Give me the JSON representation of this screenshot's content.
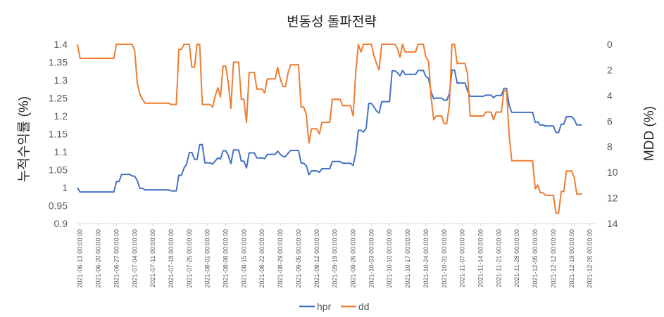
{
  "chart_data": {
    "type": "line",
    "title": "변동성 돌파전략",
    "ylabel": "누적수익률 (%)",
    "y2label": "MDD (%)",
    "ylim": [
      0.9,
      1.4
    ],
    "yticks": [
      "0.9",
      "0.95",
      "1",
      "1.05",
      "1.1",
      "1.15",
      "1.2",
      "1.25",
      "1.3",
      "1.35",
      "1.4"
    ],
    "y2lim": [
      0,
      14
    ],
    "y2reversed": true,
    "y2ticks": [
      "0",
      "2",
      "4",
      "6",
      "8",
      "10",
      "12",
      "14"
    ],
    "grid": false,
    "legend": "bottom",
    "x_start": "2021-06-12",
    "x_end": "2021-12-28",
    "xticks": [
      "2021-06-13 00:00:00",
      "2021-06-20 00:00:00",
      "2021-06-27 00:00:00",
      "2021-07-04 00:00:00",
      "2021-07-11 00:00:00",
      "2021-07-18 00:00:00",
      "2021-07-25 00:00:00",
      "2021-08-01 00:00:00",
      "2021-08-08 00:00:00",
      "2021-08-15 00:00:00",
      "2021-08-22 00:00:00",
      "2021-08-29 00:00:00",
      "2021-09-05 00:00:00",
      "2021-09-12 00:00:00",
      "2021-09-19 00:00:00",
      "2021-09-26 00:00:00",
      "2021-10-03 00:00:00",
      "2021-10-10 00:00:00",
      "2021-10-17 00:00:00",
      "2021-10-24 00:00:00",
      "2021-10-31 00:00:00",
      "2021-11-07 00:00:00",
      "2021-11-14 00:00:00",
      "2021-11-21 00:00:00",
      "2021-11-28 00:00:00",
      "2021-12-05 00:00:00",
      "2021-12-12 00:00:00",
      "2021-12-19 00:00:00",
      "2021-12-26 00:00:00"
    ],
    "colors": {
      "hpr": "#4472C4",
      "dd": "#ED7D31",
      "axis": "#d9d9d9",
      "text": "#595959",
      "title": "#262626"
    },
    "series": [
      {
        "name": "hpr",
        "axis": "left",
        "points": [
          [
            "2021-06-12",
            1.0
          ],
          [
            "2021-06-13",
            0.988
          ],
          [
            "2021-06-26",
            0.988
          ],
          [
            "2021-06-27",
            1.017
          ],
          [
            "2021-06-28",
            1.017
          ],
          [
            "2021-06-29",
            1.037
          ],
          [
            "2021-07-02",
            1.037
          ],
          [
            "2021-07-03",
            1.033
          ],
          [
            "2021-07-04",
            1.032
          ],
          [
            "2021-07-05",
            1.02
          ],
          [
            "2021-07-06",
            0.998
          ],
          [
            "2021-07-07",
            0.998
          ],
          [
            "2021-07-08",
            0.994
          ],
          [
            "2021-07-17",
            0.994
          ],
          [
            "2021-07-18",
            0.991
          ],
          [
            "2021-07-20",
            0.991
          ],
          [
            "2021-07-21",
            1.035
          ],
          [
            "2021-07-22",
            1.035
          ],
          [
            "2021-07-23",
            1.055
          ],
          [
            "2021-07-24",
            1.066
          ],
          [
            "2021-07-25",
            1.098
          ],
          [
            "2021-07-26",
            1.098
          ],
          [
            "2021-07-27",
            1.079
          ],
          [
            "2021-07-28",
            1.079
          ],
          [
            "2021-07-29",
            1.12
          ],
          [
            "2021-07-30",
            1.12
          ],
          [
            "2021-07-31",
            1.069
          ],
          [
            "2021-08-02",
            1.069
          ],
          [
            "2021-08-03",
            1.066
          ],
          [
            "2021-08-04",
            1.075
          ],
          [
            "2021-08-05",
            1.083
          ],
          [
            "2021-08-06",
            1.08
          ],
          [
            "2021-08-07",
            1.103
          ],
          [
            "2021-08-08",
            1.103
          ],
          [
            "2021-08-09",
            1.09
          ],
          [
            "2021-08-10",
            1.067
          ],
          [
            "2021-08-11",
            1.105
          ],
          [
            "2021-08-13",
            1.105
          ],
          [
            "2021-08-14",
            1.074
          ],
          [
            "2021-08-15",
            1.074
          ],
          [
            "2021-08-16",
            1.055
          ],
          [
            "2021-08-17",
            1.097
          ],
          [
            "2021-08-19",
            1.097
          ],
          [
            "2021-08-20",
            1.083
          ],
          [
            "2021-08-22",
            1.083
          ],
          [
            "2021-08-23",
            1.081
          ],
          [
            "2021-08-24",
            1.093
          ],
          [
            "2021-08-27",
            1.093
          ],
          [
            "2021-08-28",
            1.102
          ],
          [
            "2021-08-29",
            1.093
          ],
          [
            "2021-08-30",
            1.087
          ],
          [
            "2021-08-31",
            1.087
          ],
          [
            "2021-09-01",
            1.096
          ],
          [
            "2021-09-02",
            1.104
          ],
          [
            "2021-09-05",
            1.104
          ],
          [
            "2021-09-06",
            1.069
          ],
          [
            "2021-09-07",
            1.068
          ],
          [
            "2021-09-08",
            1.062
          ],
          [
            "2021-09-09",
            1.036
          ],
          [
            "2021-09-10",
            1.047
          ],
          [
            "2021-09-12",
            1.047
          ],
          [
            "2021-09-13",
            1.043
          ],
          [
            "2021-09-14",
            1.053
          ],
          [
            "2021-09-17",
            1.053
          ],
          [
            "2021-09-18",
            1.073
          ],
          [
            "2021-09-21",
            1.073
          ],
          [
            "2021-09-22",
            1.068
          ],
          [
            "2021-09-25",
            1.068
          ],
          [
            "2021-09-26",
            1.062
          ],
          [
            "2021-09-27",
            1.095
          ],
          [
            "2021-09-28",
            1.16
          ],
          [
            "2021-09-29",
            1.16
          ],
          [
            "2021-09-30",
            1.155
          ],
          [
            "2021-10-01",
            1.166
          ],
          [
            "2021-10-02",
            1.235
          ],
          [
            "2021-10-03",
            1.235
          ],
          [
            "2021-10-04",
            1.225
          ],
          [
            "2021-10-05",
            1.214
          ],
          [
            "2021-10-06",
            1.208
          ],
          [
            "2021-10-07",
            1.24
          ],
          [
            "2021-10-10",
            1.24
          ],
          [
            "2021-10-11",
            1.326
          ],
          [
            "2021-10-12",
            1.326
          ],
          [
            "2021-10-13",
            1.321
          ],
          [
            "2021-10-14",
            1.312
          ],
          [
            "2021-10-15",
            1.327
          ],
          [
            "2021-10-16",
            1.316
          ],
          [
            "2021-10-20",
            1.316
          ],
          [
            "2021-10-21",
            1.327
          ],
          [
            "2021-10-23",
            1.327
          ],
          [
            "2021-10-24",
            1.31
          ],
          [
            "2021-10-25",
            1.305
          ],
          [
            "2021-10-26",
            1.267
          ],
          [
            "2021-10-27",
            1.248
          ],
          [
            "2021-10-28",
            1.25
          ],
          [
            "2021-10-30",
            1.25
          ],
          [
            "2021-10-31",
            1.244
          ],
          [
            "2021-11-01",
            1.244
          ],
          [
            "2021-11-02",
            1.262
          ],
          [
            "2021-11-03",
            1.328
          ],
          [
            "2021-11-04",
            1.328
          ],
          [
            "2021-11-05",
            1.292
          ],
          [
            "2021-11-08",
            1.292
          ],
          [
            "2021-11-09",
            1.27
          ],
          [
            "2021-11-10",
            1.255
          ],
          [
            "2021-11-15",
            1.255
          ],
          [
            "2021-11-16",
            1.258
          ],
          [
            "2021-11-18",
            1.258
          ],
          [
            "2021-11-19",
            1.251
          ],
          [
            "2021-11-20",
            1.257
          ],
          [
            "2021-11-22",
            1.257
          ],
          [
            "2021-11-23",
            1.277
          ],
          [
            "2021-11-24",
            1.277
          ],
          [
            "2021-11-25",
            1.23
          ],
          [
            "2021-11-26",
            1.21
          ],
          [
            "2021-12-04",
            1.21
          ],
          [
            "2021-12-05",
            1.182
          ],
          [
            "2021-12-06",
            1.184
          ],
          [
            "2021-12-07",
            1.174
          ],
          [
            "2021-12-08",
            1.175
          ],
          [
            "2021-12-09",
            1.172
          ],
          [
            "2021-12-12",
            1.172
          ],
          [
            "2021-12-13",
            1.154
          ],
          [
            "2021-12-14",
            1.154
          ],
          [
            "2021-12-15",
            1.177
          ],
          [
            "2021-12-16",
            1.177
          ],
          [
            "2021-12-17",
            1.198
          ],
          [
            "2021-12-19",
            1.198
          ],
          [
            "2021-12-20",
            1.19
          ],
          [
            "2021-12-21",
            1.175
          ],
          [
            "2021-12-23",
            1.175
          ]
        ]
      },
      {
        "name": "dd",
        "axis": "right",
        "points": [
          [
            "2021-06-12",
            0.0
          ],
          [
            "2021-06-13",
            1.1
          ],
          [
            "2021-06-26",
            1.1
          ],
          [
            "2021-06-27",
            0.0
          ],
          [
            "2021-07-03",
            0.0
          ],
          [
            "2021-07-04",
            0.5
          ],
          [
            "2021-07-05",
            3.0
          ],
          [
            "2021-07-06",
            3.9
          ],
          [
            "2021-07-07",
            4.3
          ],
          [
            "2021-07-08",
            4.6
          ],
          [
            "2021-07-17",
            4.6
          ],
          [
            "2021-07-18",
            4.7
          ],
          [
            "2021-07-20",
            4.7
          ],
          [
            "2021-07-21",
            0.4
          ],
          [
            "2021-07-22",
            0.4
          ],
          [
            "2021-07-23",
            0.0
          ],
          [
            "2021-07-25",
            0.0
          ],
          [
            "2021-07-26",
            1.8
          ],
          [
            "2021-07-27",
            1.8
          ],
          [
            "2021-07-28",
            0.0
          ],
          [
            "2021-07-29",
            0.0
          ],
          [
            "2021-07-30",
            4.7
          ],
          [
            "2021-08-02",
            4.7
          ],
          [
            "2021-08-03",
            4.9
          ],
          [
            "2021-08-04",
            4.0
          ],
          [
            "2021-08-05",
            3.4
          ],
          [
            "2021-08-06",
            4.1
          ],
          [
            "2021-08-07",
            1.7
          ],
          [
            "2021-08-08",
            1.7
          ],
          [
            "2021-08-09",
            3.0
          ],
          [
            "2021-08-10",
            5.0
          ],
          [
            "2021-08-11",
            1.4
          ],
          [
            "2021-08-13",
            1.4
          ],
          [
            "2021-08-14",
            4.3
          ],
          [
            "2021-08-15",
            4.3
          ],
          [
            "2021-08-16",
            6.1
          ],
          [
            "2021-08-17",
            2.2
          ],
          [
            "2021-08-19",
            2.2
          ],
          [
            "2021-08-20",
            3.5
          ],
          [
            "2021-08-22",
            3.5
          ],
          [
            "2021-08-23",
            3.8
          ],
          [
            "2021-08-24",
            2.7
          ],
          [
            "2021-08-27",
            2.7
          ],
          [
            "2021-08-28",
            1.8
          ],
          [
            "2021-08-29",
            2.7
          ],
          [
            "2021-08-30",
            3.3
          ],
          [
            "2021-08-31",
            3.3
          ],
          [
            "2021-09-01",
            2.2
          ],
          [
            "2021-09-02",
            1.6
          ],
          [
            "2021-09-05",
            1.6
          ],
          [
            "2021-09-06",
            4.9
          ],
          [
            "2021-09-07",
            4.9
          ],
          [
            "2021-09-08",
            5.5
          ],
          [
            "2021-09-09",
            7.7
          ],
          [
            "2021-09-10",
            6.6
          ],
          [
            "2021-09-12",
            6.6
          ],
          [
            "2021-09-13",
            7.0
          ],
          [
            "2021-09-14",
            6.1
          ],
          [
            "2021-09-17",
            6.1
          ],
          [
            "2021-09-18",
            4.3
          ],
          [
            "2021-09-21",
            4.3
          ],
          [
            "2021-09-22",
            4.8
          ],
          [
            "2021-09-25",
            4.8
          ],
          [
            "2021-09-26",
            5.6
          ],
          [
            "2021-09-27",
            2.2
          ],
          [
            "2021-09-28",
            0.0
          ],
          [
            "2021-09-29",
            0.6
          ],
          [
            "2021-09-30",
            0.0
          ],
          [
            "2021-10-01",
            0.0
          ],
          [
            "2021-10-02",
            0.0
          ],
          [
            "2021-10-03",
            0.0
          ],
          [
            "2021-10-04",
            0.9
          ],
          [
            "2021-10-05",
            1.5
          ],
          [
            "2021-10-06",
            2.0
          ],
          [
            "2021-10-07",
            0.0
          ],
          [
            "2021-10-10",
            0.0
          ],
          [
            "2021-10-11",
            0.0
          ],
          [
            "2021-10-12",
            0.0
          ],
          [
            "2021-10-13",
            0.3
          ],
          [
            "2021-10-14",
            1.0
          ],
          [
            "2021-10-15",
            0.0
          ],
          [
            "2021-10-16",
            0.6
          ],
          [
            "2021-10-20",
            0.6
          ],
          [
            "2021-10-21",
            0.0
          ],
          [
            "2021-10-23",
            0.0
          ],
          [
            "2021-10-24",
            1.0
          ],
          [
            "2021-10-25",
            1.3
          ],
          [
            "2021-10-26",
            4.2
          ],
          [
            "2021-10-27",
            5.9
          ],
          [
            "2021-10-28",
            5.6
          ],
          [
            "2021-10-30",
            5.6
          ],
          [
            "2021-10-31",
            6.2
          ],
          [
            "2021-11-01",
            6.2
          ],
          [
            "2021-11-02",
            4.7
          ],
          [
            "2021-11-03",
            0.0
          ],
          [
            "2021-11-04",
            0.0
          ],
          [
            "2021-11-05",
            1.5
          ],
          [
            "2021-11-08",
            1.5
          ],
          [
            "2021-11-09",
            2.3
          ],
          [
            "2021-11-10",
            5.6
          ],
          [
            "2021-11-15",
            5.6
          ],
          [
            "2021-11-16",
            5.3
          ],
          [
            "2021-11-18",
            5.3
          ],
          [
            "2021-11-19",
            5.9
          ],
          [
            "2021-11-20",
            5.3
          ],
          [
            "2021-11-22",
            5.3
          ],
          [
            "2021-11-23",
            3.6
          ],
          [
            "2021-11-24",
            3.6
          ],
          [
            "2021-11-25",
            7.1
          ],
          [
            "2021-11-26",
            9.1
          ],
          [
            "2021-12-04",
            9.1
          ],
          [
            "2021-12-05",
            11.3
          ],
          [
            "2021-12-06",
            11.0
          ],
          [
            "2021-12-07",
            11.6
          ],
          [
            "2021-12-08",
            11.6
          ],
          [
            "2021-12-09",
            11.8
          ],
          [
            "2021-12-12",
            11.8
          ],
          [
            "2021-12-13",
            13.2
          ],
          [
            "2021-12-14",
            13.2
          ],
          [
            "2021-12-15",
            11.5
          ],
          [
            "2021-12-16",
            11.5
          ],
          [
            "2021-12-17",
            9.9
          ],
          [
            "2021-12-19",
            9.9
          ],
          [
            "2021-12-20",
            10.4
          ],
          [
            "2021-12-21",
            11.7
          ],
          [
            "2021-12-23",
            11.7
          ]
        ]
      }
    ]
  }
}
